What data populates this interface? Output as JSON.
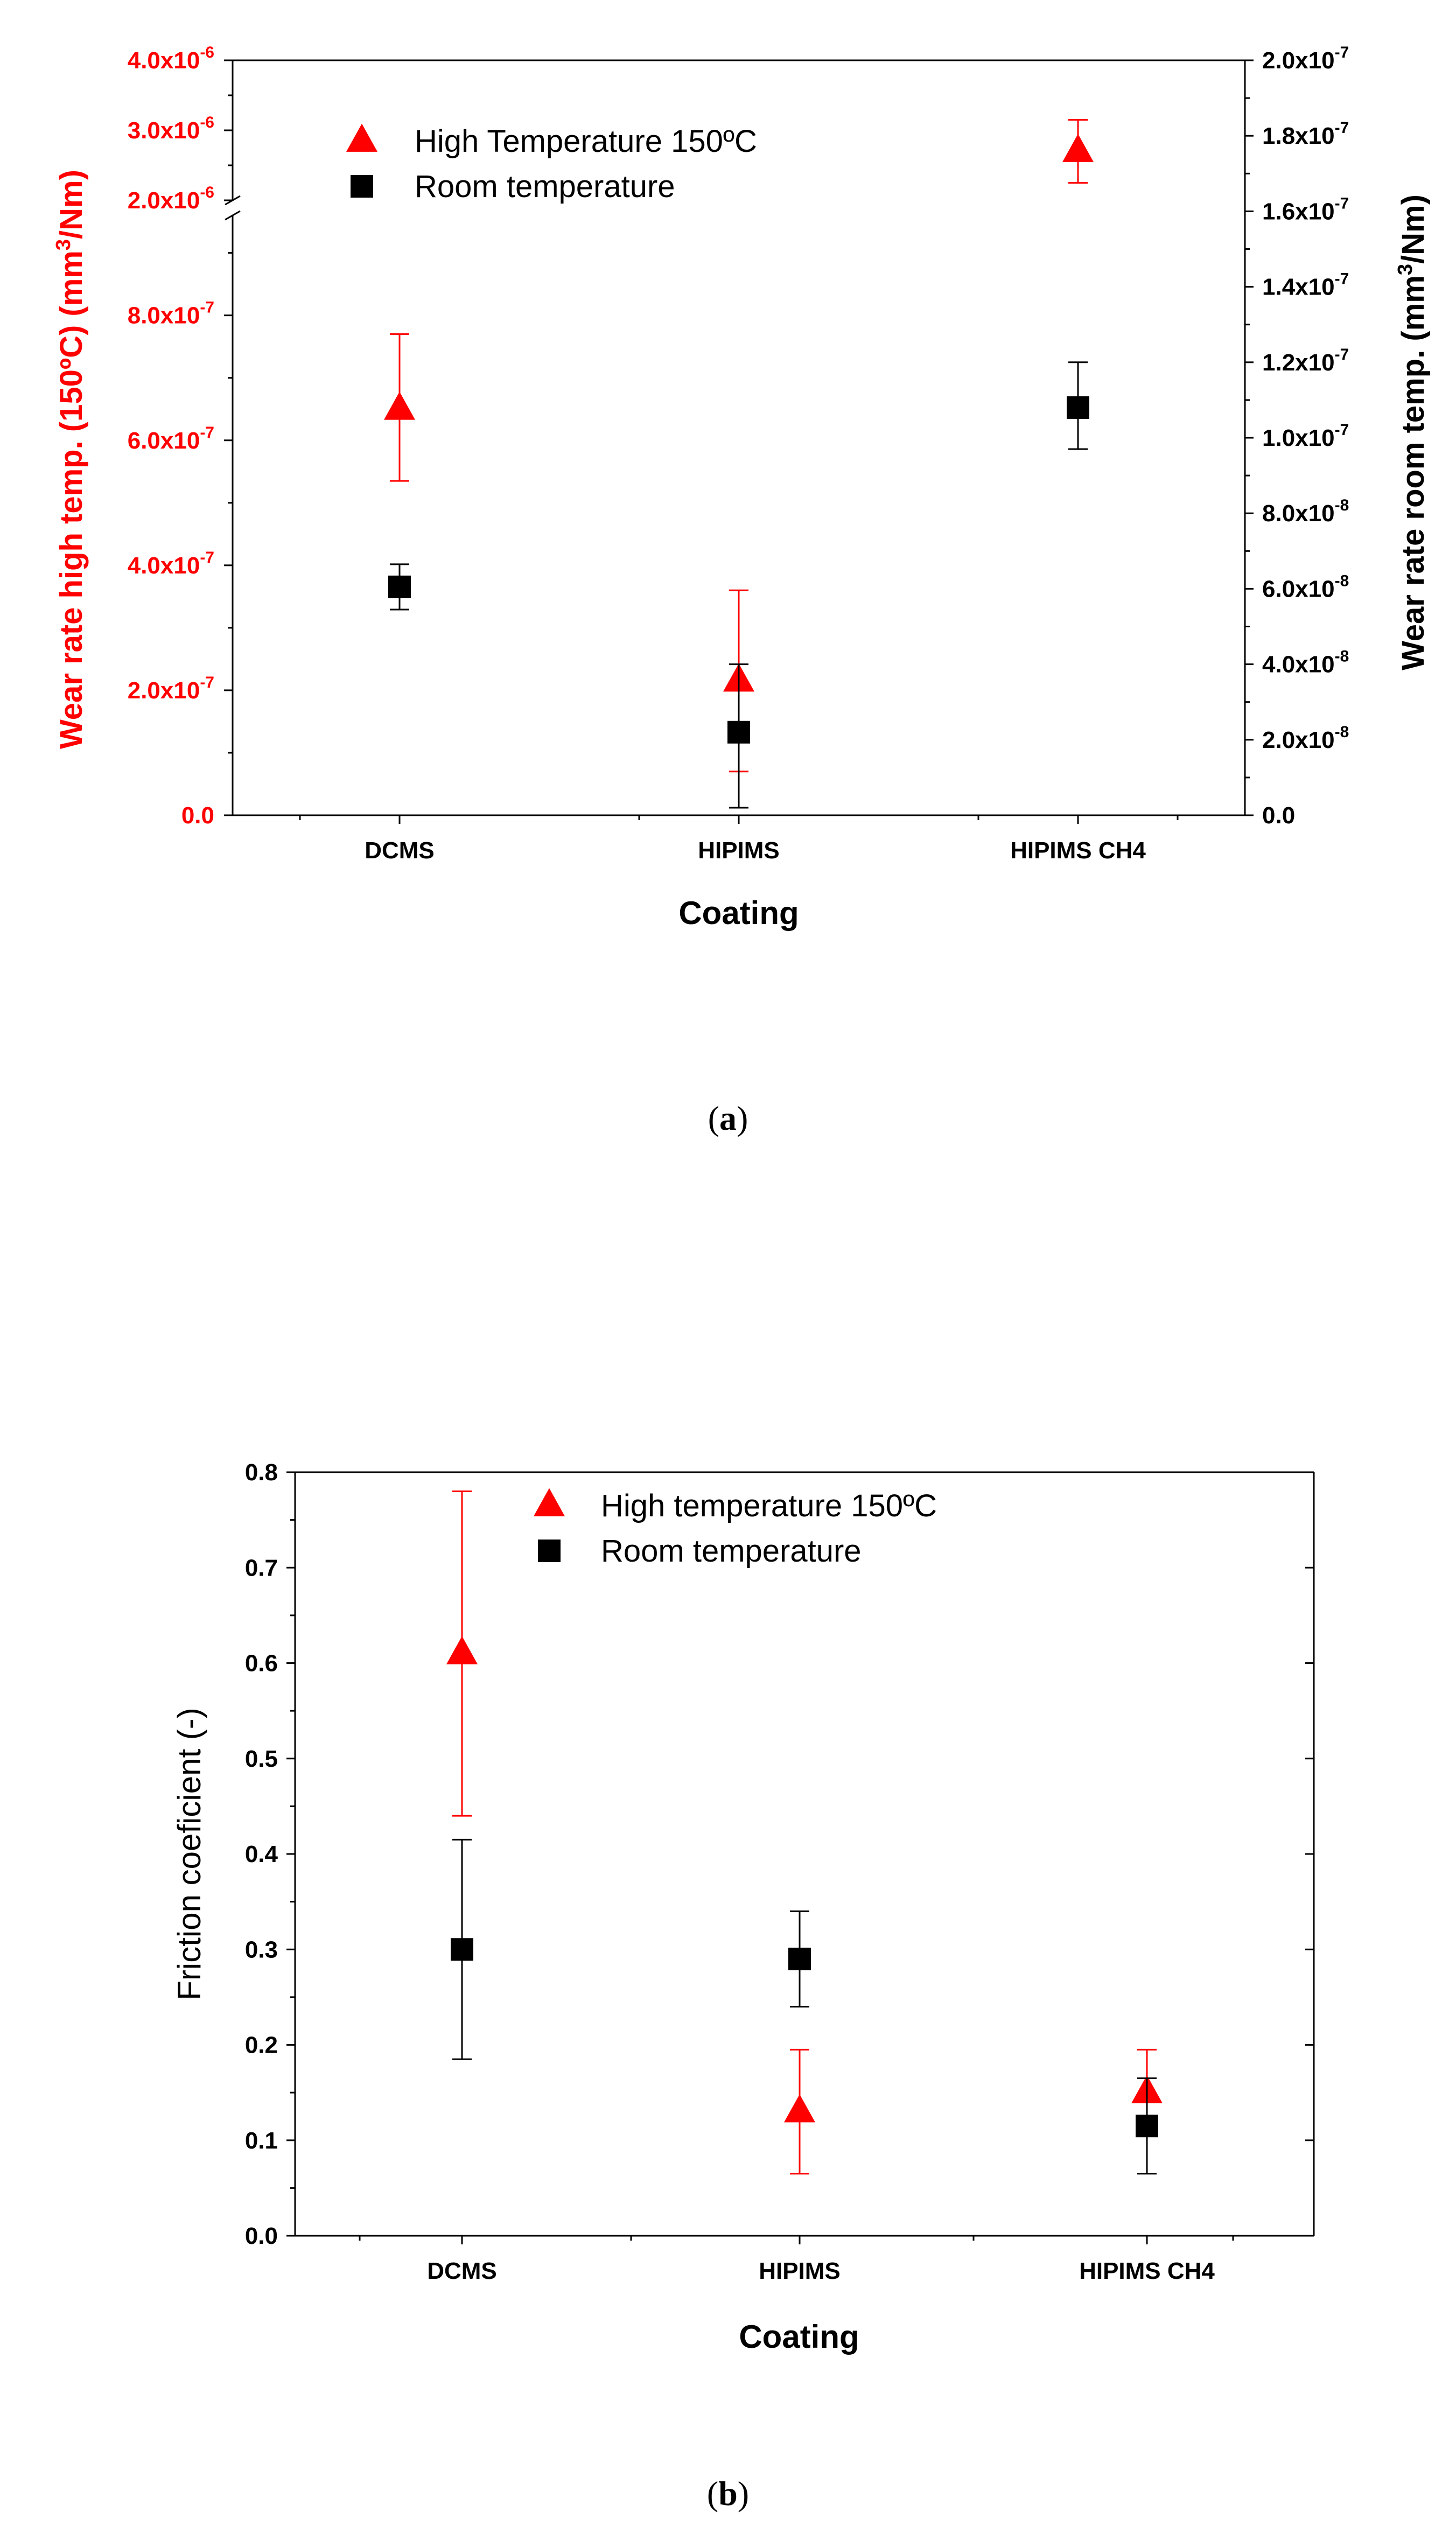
{
  "colors": {
    "high": "#ff0000",
    "room": "#000000",
    "axis": "#000000",
    "background": "#ffffff"
  },
  "chart_data": [
    {
      "type": "scatter",
      "panel_label": "a",
      "xlabel": "Coating",
      "categories": [
        "DCMS",
        "HIPIMS",
        "HIPIMS CH4"
      ],
      "ylabel_left": "Wear rate high temp. (150ºC) (mm³/Nm)",
      "ylabel_right": "Wear rate room temp. (mm³/Nm)",
      "ylim_left_lower": [
        0,
        9.6e-07
      ],
      "ylim_left_upper": [
        2e-06,
        4e-06
      ],
      "axis_break": "between 9.6x10⁻⁷ and 2.0x10⁻⁶",
      "yticks_left_lower": [
        {
          "value": 0.0,
          "mantissa": "0.0",
          "exp": ""
        },
        {
          "value": 2e-07,
          "mantissa": "2.0x10",
          "exp": "-7"
        },
        {
          "value": 4e-07,
          "mantissa": "4.0x10",
          "exp": "-7"
        },
        {
          "value": 6e-07,
          "mantissa": "6.0x10",
          "exp": "-7"
        },
        {
          "value": 8e-07,
          "mantissa": "8.0x10",
          "exp": "-7"
        }
      ],
      "yticks_left_upper": [
        {
          "value": 2e-06,
          "mantissa": "2.0x10",
          "exp": "-6"
        },
        {
          "value": 3e-06,
          "mantissa": "3.0x10",
          "exp": "-6"
        },
        {
          "value": 4e-06,
          "mantissa": "4.0x10",
          "exp": "-6"
        }
      ],
      "ylim_right": [
        0,
        2e-07
      ],
      "yticks_right": [
        {
          "value": 0.0,
          "mantissa": "0.0",
          "exp": ""
        },
        {
          "value": 2e-08,
          "mantissa": "2.0x10",
          "exp": "-8"
        },
        {
          "value": 4e-08,
          "mantissa": "4.0x10",
          "exp": "-8"
        },
        {
          "value": 6e-08,
          "mantissa": "6.0x10",
          "exp": "-8"
        },
        {
          "value": 8e-08,
          "mantissa": "8.0x10",
          "exp": "-8"
        },
        {
          "value": 1e-07,
          "mantissa": "1.0x10",
          "exp": "-7"
        },
        {
          "value": 1.2e-07,
          "mantissa": "1.2x10",
          "exp": "-7"
        },
        {
          "value": 1.4e-07,
          "mantissa": "1.4x10",
          "exp": "-7"
        },
        {
          "value": 1.6e-07,
          "mantissa": "1.6x10",
          "exp": "-7"
        },
        {
          "value": 1.8e-07,
          "mantissa": "1.8x10",
          "exp": "-7"
        },
        {
          "value": 2e-07,
          "mantissa": "2.0x10",
          "exp": "-7"
        }
      ],
      "series": [
        {
          "name": "High Temperature 150ºC",
          "axis": "left",
          "marker": "triangle",
          "values": [
            6.5e-07,
            2.15e-07,
            2.7e-06
          ],
          "err_low": [
            5.35e-07,
            7e-08,
            2.25e-06
          ],
          "err_high": [
            7.7e-07,
            3.6e-07,
            3.15e-06
          ]
        },
        {
          "name": "Room temperature",
          "axis": "right",
          "marker": "square",
          "values": [
            6.05e-08,
            2.2e-08,
            1.08e-07
          ],
          "err_low": [
            5.45e-08,
            2e-09,
            9.7e-08
          ],
          "err_high": [
            6.65e-08,
            4e-08,
            1.2e-07
          ]
        }
      ],
      "legend_position": "top-left"
    },
    {
      "type": "scatter",
      "panel_label": "b",
      "xlabel": "Coating",
      "ylabel": "Friction coeficient (-)",
      "categories": [
        "DCMS",
        "HIPIMS",
        "HIPIMS CH4"
      ],
      "ylim": [
        0,
        0.8
      ],
      "yticks": [
        "0.0",
        "0.1",
        "0.2",
        "0.3",
        "0.4",
        "0.5",
        "0.6",
        "0.7",
        "0.8"
      ],
      "series": [
        {
          "name": "High temperature 150ºC",
          "marker": "triangle",
          "values": [
            0.61,
            0.13,
            0.15
          ],
          "err_low": [
            0.44,
            0.065,
            0.11
          ],
          "err_high": [
            0.78,
            0.195,
            0.195
          ]
        },
        {
          "name": "Room temperature",
          "marker": "square",
          "values": [
            0.3,
            0.29,
            0.115
          ],
          "err_low": [
            0.185,
            0.24,
            0.065
          ],
          "err_high": [
            0.415,
            0.34,
            0.165
          ]
        }
      ],
      "legend_position": "top-center"
    }
  ]
}
